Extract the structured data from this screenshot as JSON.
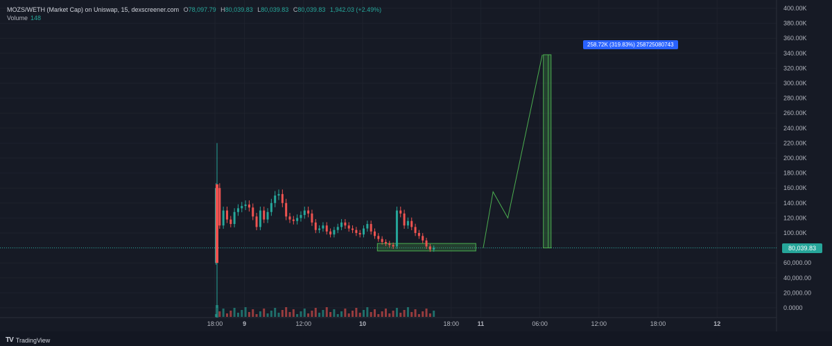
{
  "header": {
    "symbol": "MOZS/WETH (Market Cap) on Uniswap, 15, dexscreener.com",
    "open_label": "O",
    "open": "78,097.79",
    "high_label": "H",
    "high": "80,039.83",
    "low_label": "L",
    "low": "80,039.83",
    "close_label": "C",
    "close": "80,039.83",
    "change": "1,942.03 (+2.49%)",
    "volume_label": "Volume",
    "volume": "148"
  },
  "price_tag": "80,039.83",
  "annotation": "258.72K (319.83%) 258725080743",
  "footer": {
    "brand": "TradingView",
    "logo": "TV"
  },
  "colors": {
    "up": "#26a69a",
    "down": "#ef5350",
    "bg": "#161a25",
    "grid": "#1e222d",
    "accent": "#2962ff",
    "drawing": "#4caf50"
  },
  "chart_data": {
    "type": "candlestick",
    "title": "MOZS/WETH (Market Cap) on Uniswap, 15, dexscreener.com",
    "y_ticks": [
      "0.0000",
      "20,000.00",
      "40,000.00",
      "60,000.00",
      "80.00K",
      "100.00K",
      "120.00K",
      "140.00K",
      "160.00K",
      "180.00K",
      "200.00K",
      "220.00K",
      "240.00K",
      "260.00K",
      "280.00K",
      "300.00K",
      "320.00K",
      "340.00K",
      "360.00K",
      "380.00K",
      "400.00K"
    ],
    "x_ticks": [
      {
        "label": "18:00",
        "t": 0
      },
      {
        "label": "9",
        "t": 6
      },
      {
        "label": "12:00",
        "t": 18
      },
      {
        "label": "10",
        "t": 30
      },
      {
        "label": "18:00",
        "t": 48
      },
      {
        "label": "11",
        "t": 54
      },
      {
        "label": "06:00",
        "t": 66
      },
      {
        "label": "12:00",
        "t": 78
      },
      {
        "label": "18:00",
        "t": 90
      },
      {
        "label": "12",
        "t": 102
      }
    ],
    "ylim": [
      0,
      400000
    ],
    "last_price": 80039.83,
    "candles_close": [
      160000,
      110000,
      130000,
      118000,
      112000,
      128000,
      133000,
      136000,
      138000,
      134000,
      122000,
      108000,
      130000,
      118000,
      128000,
      140000,
      150000,
      152000,
      140000,
      122000,
      118000,
      116000,
      120000,
      124000,
      130000,
      126000,
      114000,
      104000,
      106000,
      110000,
      102000,
      98000,
      104000,
      108000,
      114000,
      110000,
      106000,
      104000,
      100000,
      98000,
      106000,
      112000,
      102000,
      96000,
      92000,
      88000,
      86000,
      84000,
      82000,
      130000,
      126000,
      110000,
      116000,
      108000,
      100000,
      96000,
      90000,
      82000,
      78000,
      80039
    ],
    "volume_note": "Volume histogram shown at bottom",
    "projection_path": [
      {
        "t": 54.5,
        "v": 80039
      },
      {
        "t": 56.5,
        "v": 155000
      },
      {
        "t": 59.5,
        "v": 120000
      },
      {
        "t": 66.5,
        "v": 338000
      }
    ],
    "measure_box": {
      "t1": 67,
      "t2": 68,
      "v1": 80039,
      "v2": 338000
    },
    "range_box": {
      "t1": 33,
      "t2": 53,
      "v1": 76000,
      "v2": 86000
    }
  }
}
